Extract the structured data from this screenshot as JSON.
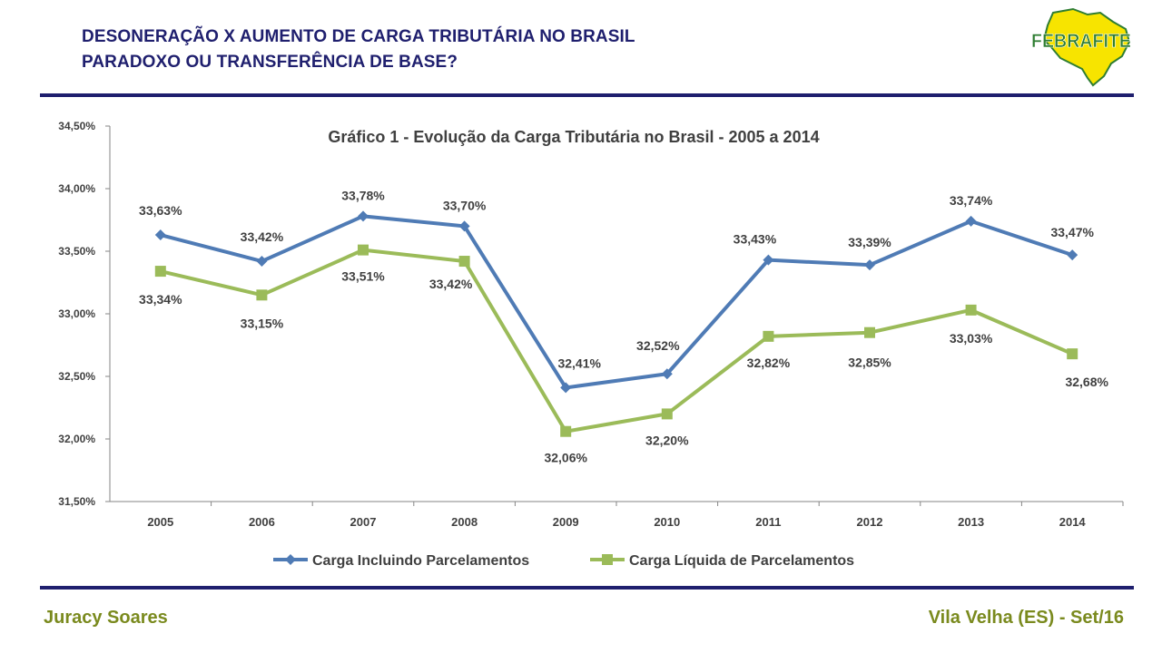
{
  "header": {
    "title_line1": "DESONERAÇÃO X AUMENTO DE CARGA TRIBUTÁRIA NO BRASIL",
    "title_line2": "PARADOXO OU TRANSFERÊNCIA DE BASE?",
    "logo_text": "FEBRAFITE"
  },
  "footer": {
    "author": "Juracy Soares",
    "location_date": "Vila Velha (ES) - Set/16"
  },
  "colors": {
    "header_text": "#1f1f6e",
    "rule": "#1f1f6e",
    "footer_text": "#7a8a1e",
    "series1": "#4f7bb5",
    "series2": "#9bbb59",
    "logo_green": "#2e7d32",
    "logo_yellow": "#f7e400"
  },
  "chart_data": {
    "type": "line",
    "title": "Gráfico 1 - Evolução da Carga Tributária no Brasil - 2005 a 2014",
    "categories": [
      "2005",
      "2006",
      "2007",
      "2008",
      "2009",
      "2010",
      "2011",
      "2012",
      "2013",
      "2014"
    ],
    "ylim": [
      31.5,
      34.5
    ],
    "yticks": [
      "31,50%",
      "32,00%",
      "32,50%",
      "33,00%",
      "33,50%",
      "34,00%",
      "34,50%"
    ],
    "grid": false,
    "legend": "bottom",
    "series": [
      {
        "name": "Carga Incluindo Parcelamentos",
        "marker": "diamond",
        "values": [
          33.63,
          33.42,
          33.78,
          33.7,
          32.41,
          32.52,
          33.43,
          33.39,
          33.74,
          33.47
        ],
        "labels": [
          "33,63%",
          "33,42%",
          "33,78%",
          "33,70%",
          "32,41%",
          "32,52%",
          "33,43%",
          "33,39%",
          "33,74%",
          "33,47%"
        ]
      },
      {
        "name": "Carga Líquida de Parcelamentos",
        "marker": "square",
        "values": [
          33.34,
          33.15,
          33.51,
          33.42,
          32.06,
          32.2,
          32.82,
          32.85,
          33.03,
          32.68
        ],
        "labels": [
          "33,34%",
          "33,15%",
          "33,51%",
          "33,42%",
          "32,06%",
          "32,20%",
          "32,82%",
          "32,85%",
          "33,03%",
          "32,68%"
        ]
      }
    ]
  }
}
